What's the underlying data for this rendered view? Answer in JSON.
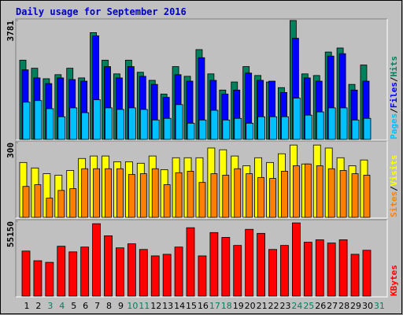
{
  "chart_data": [
    {
      "type": "bar",
      "title": "Daily usage for September 2016",
      "title_color": "#0000c0",
      "ylim": [
        0,
        3781
      ],
      "yticks": [
        3781
      ],
      "legend_separator": "/",
      "series": [
        {
          "name": "Hits",
          "color": "#00805c",
          "values": [
            2520,
            2263,
            1929,
            2058,
            2263,
            1955,
            3395,
            2520,
            2083,
            2520,
            2135,
            1878,
            1440,
            2315,
            2006,
            2855,
            2083,
            1569,
            1826,
            2315,
            2032,
            1826,
            1646,
            3781,
            2083,
            2032,
            2778,
            2906,
            1749,
            2366,
            null
          ]
        },
        {
          "name": "Files",
          "color": "#0000ff",
          "values": [
            2212,
            1955,
            1775,
            1955,
            1903,
            1852,
            3292,
            2315,
            1955,
            2315,
            2006,
            1749,
            1337,
            2058,
            1852,
            2598,
            1878,
            1440,
            1569,
            2109,
            1878,
            1852,
            1492,
            3215,
            1955,
            1852,
            2649,
            2726,
            1569,
            1852,
            null
          ]
        },
        {
          "name": "Pages",
          "color": "#00c0ff",
          "values": [
            1183,
            1234,
            977,
            720,
            1003,
            849,
            1260,
            1003,
            952,
            1003,
            952,
            617,
            669,
            1106,
            514,
            617,
            926,
            617,
            669,
            514,
            720,
            720,
            720,
            1312,
            772,
            874,
            1003,
            1003,
            617,
            669,
            null
          ]
        }
      ]
    },
    {
      "type": "bar",
      "ylim": [
        0,
        300
      ],
      "yticks": [
        300
      ],
      "legend_separator": "/",
      "series": [
        {
          "name": "Visits",
          "color": "#ffff00",
          "values": [
            220,
            198,
            175,
            169,
            188,
            236,
            246,
            246,
            223,
            223,
            217,
            246,
            191,
            239,
            239,
            239,
            278,
            271,
            246,
            207,
            239,
            220,
            255,
            290,
            214,
            290,
            278,
            239,
            207,
            230,
            null
          ]
        },
        {
          "name": "Sites",
          "color": "#ff8000",
          "values": [
            124,
            131,
            77,
            108,
            115,
            195,
            195,
            195,
            195,
            172,
            175,
            195,
            131,
            179,
            185,
            140,
            175,
            169,
            195,
            175,
            160,
            156,
            185,
            207,
            214,
            207,
            195,
            188,
            175,
            169,
            null
          ]
        }
      ]
    },
    {
      "type": "bar",
      "ylim": [
        0,
        55150
      ],
      "yticks": [
        55150
      ],
      "categories": [
        "1",
        "2",
        "3",
        "4",
        "5",
        "6",
        "7",
        "8",
        "9",
        "10",
        "11",
        "12",
        "13",
        "14",
        "15",
        "16",
        "17",
        "18",
        "19",
        "20",
        "21",
        "22",
        "23",
        "24",
        "25",
        "26",
        "27",
        "28",
        "29",
        "30",
        "31"
      ],
      "category_colors": [
        "#000000",
        "#000000",
        "#00805c",
        "#00805c",
        "#000000",
        "#000000",
        "#000000",
        "#000000",
        "#000000",
        "#00805c",
        "#00805c",
        "#000000",
        "#000000",
        "#000000",
        "#000000",
        "#000000",
        "#00805c",
        "#00805c",
        "#000000",
        "#000000",
        "#000000",
        "#000000",
        "#000000",
        "#00805c",
        "#00805c",
        "#000000",
        "#000000",
        "#000000",
        "#000000",
        "#000000",
        "#00805c"
      ],
      "series": [
        {
          "name": "KBytes",
          "color": "#ff0000",
          "values": [
            33208,
            26092,
            24906,
            36766,
            32615,
            36173,
            53370,
            44475,
            35580,
            38545,
            34394,
            29650,
            30836,
            36173,
            50405,
            29650,
            46847,
            43289,
            37359,
            49219,
            46254,
            34394,
            37359,
            53963,
            39731,
            41510,
            39138,
            41510,
            30836,
            33801,
            null
          ]
        }
      ]
    }
  ]
}
